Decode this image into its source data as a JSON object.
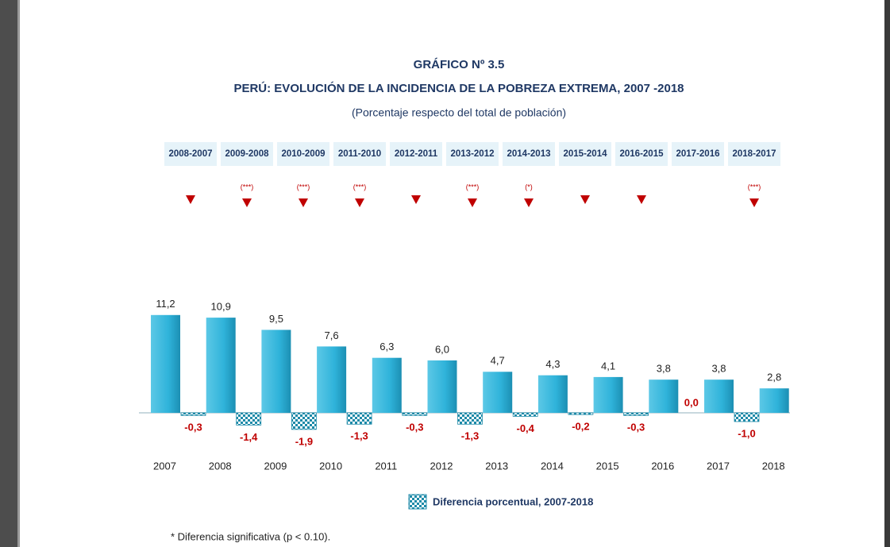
{
  "chart_data": {
    "type": "bar",
    "title": "GRÁFICO Nº 3.5",
    "subtitle": "PERÚ: EVOLUCIÓN DE LA INCIDENCIA DE LA POBREZA EXTREMA, 2007 -2018",
    "note": "(Porcentaje respecto del total de población)",
    "categories": [
      "2007",
      "2008",
      "2009",
      "2010",
      "2011",
      "2012",
      "2013",
      "2014",
      "2015",
      "2016",
      "2017",
      "2018"
    ],
    "values": [
      11.2,
      10.9,
      9.5,
      7.6,
      6.3,
      6.0,
      4.7,
      4.3,
      4.1,
      3.8,
      3.8,
      2.8
    ],
    "value_labels": [
      "11,2",
      "10,9",
      "9,5",
      "7,6",
      "6,3",
      "6,0",
      "4,7",
      "4,3",
      "4,1",
      "3,8",
      "3,8",
      "2,8"
    ],
    "color": "#2fb3da",
    "differences": {
      "name": "Diferencia porcentual, 2007-2018",
      "color": "#1e8aa8",
      "values": [
        -0.3,
        -1.4,
        -1.9,
        -1.3,
        -0.3,
        -1.3,
        -0.4,
        -0.2,
        -0.3,
        0.0,
        -1.0
      ],
      "value_labels": [
        "-0,3",
        "-1,4",
        "-1,9",
        "-1,3",
        "-0,3",
        "-1,3",
        "-0,4",
        "-0,2",
        "-0,3",
        "0,0",
        "-1,0"
      ]
    },
    "periods": [
      {
        "label": "2008-2007",
        "mark": null
      },
      {
        "label": "2009-2008",
        "mark": "(***)"
      },
      {
        "label": "2010-2009",
        "mark": "(***)"
      },
      {
        "label": "2011-2010",
        "mark": "(***)"
      },
      {
        "label": "2012-2011",
        "mark": null
      },
      {
        "label": "2013-2012",
        "mark": "(***)"
      },
      {
        "label": "2014-2013",
        "mark": "(*)"
      },
      {
        "label": "2015-2014",
        "mark": null
      },
      {
        "label": "2016-2015",
        "mark": null
      },
      {
        "label": "2017-2016",
        "mark": null
      },
      {
        "label": "2018-2017",
        "mark": "(***)"
      }
    ],
    "footnote": "* Diferencia significativa (p < 0.10)."
  }
}
